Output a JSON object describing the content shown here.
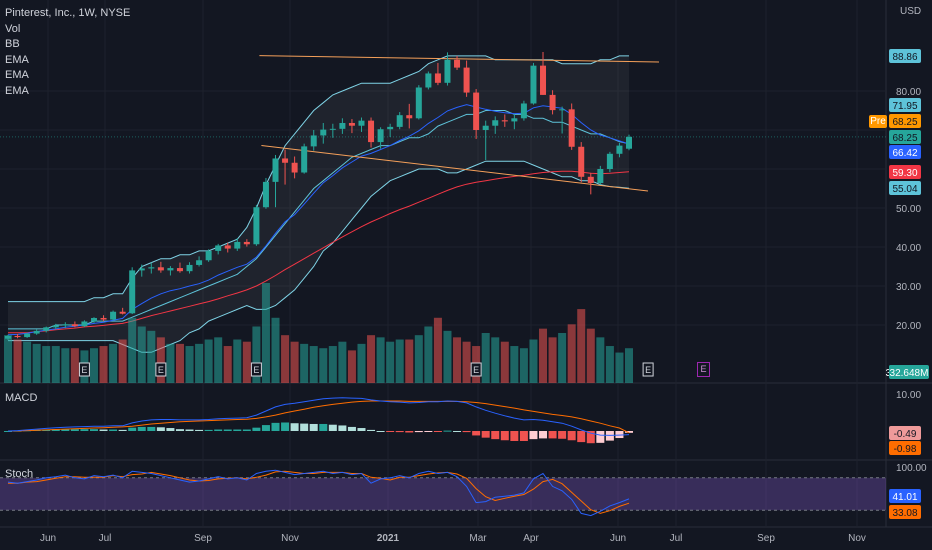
{
  "header": {
    "title": "Pinterest, Inc., 1W, NYSE",
    "indicators": [
      "Vol",
      "BB",
      "EMA",
      "EMA",
      "EMA"
    ],
    "currency": "USD"
  },
  "chart_data": [
    {
      "type": "candlestick",
      "pane": "price",
      "price_axis_ticks": [
        20,
        30,
        40,
        50,
        60,
        70,
        80
      ],
      "price_axis_tick_labels": [
        "20.00",
        "30.00",
        "40.00",
        "50.00",
        "",
        "",
        "80.00"
      ],
      "time_axis_labels": [
        "Jun",
        "Jul",
        "Sep",
        "Nov",
        "2021",
        "Mar",
        "Apr",
        "Jun",
        "Jul",
        "Sep",
        "Nov"
      ],
      "price_tags": [
        {
          "label": "88.86",
          "value": 88.86,
          "color": "#5ec3d9"
        },
        {
          "label": "71.95",
          "value": 71.95,
          "color": "#5ec3d9"
        },
        {
          "label": "68.25",
          "value": 68.25,
          "color": "#ff9800",
          "prefix": "Pre"
        },
        {
          "label": "68.25",
          "value": 68.25,
          "color": "#26a69a"
        },
        {
          "label": "66.42",
          "value": 66.42,
          "color": "#2962ff"
        },
        {
          "label": "59.30",
          "value": 59.3,
          "color": "#f23645"
        },
        {
          "label": "55.04",
          "value": 55.04,
          "color": "#5ec3d9"
        }
      ],
      "candles": [
        [
          16.5,
          17.5,
          16.2,
          17.2
        ],
        [
          17.2,
          17.7,
          16.6,
          16.9
        ],
        [
          16.9,
          18.0,
          16.7,
          17.8
        ],
        [
          17.8,
          18.9,
          17.5,
          18.5
        ],
        [
          18.5,
          19.6,
          18.1,
          19.4
        ],
        [
          19.4,
          20.3,
          18.9,
          19.9
        ],
        [
          19.9,
          20.7,
          19.2,
          20.2
        ],
        [
          20.2,
          20.9,
          19.4,
          19.7
        ],
        [
          19.7,
          21.2,
          19.5,
          20.9
        ],
        [
          20.9,
          22.0,
          20.5,
          21.8
        ],
        [
          21.8,
          22.5,
          21.0,
          21.4
        ],
        [
          21.4,
          23.7,
          21.2,
          23.4
        ],
        [
          23.4,
          24.4,
          22.7,
          22.9
        ],
        [
          23.0,
          34.8,
          22.8,
          34.0
        ],
        [
          34.0,
          35.5,
          32.4,
          34.5
        ],
        [
          34.5,
          36.0,
          33.2,
          34.8
        ],
        [
          34.8,
          36.2,
          33.4,
          34.0
        ],
        [
          34.0,
          35.1,
          32.7,
          34.6
        ],
        [
          34.6,
          36.0,
          33.4,
          33.8
        ],
        [
          33.8,
          36.1,
          33.2,
          35.4
        ],
        [
          35.4,
          37.6,
          35.0,
          36.6
        ],
        [
          36.6,
          39.4,
          36.2,
          39.0
        ],
        [
          39.0,
          40.8,
          38.1,
          40.4
        ],
        [
          40.4,
          41.1,
          38.6,
          39.6
        ],
        [
          39.6,
          42.3,
          39.0,
          41.3
        ],
        [
          41.3,
          42.0,
          40.1,
          40.7
        ],
        [
          40.7,
          50.8,
          40.3,
          50.2
        ],
        [
          50.2,
          57.7,
          49.8,
          56.7
        ],
        [
          56.7,
          63.6,
          50.2,
          62.7
        ],
        [
          62.7,
          65.0,
          56.0,
          61.6
        ],
        [
          61.6,
          63.2,
          57.6,
          59.1
        ],
        [
          59.1,
          66.5,
          58.8,
          65.8
        ],
        [
          65.8,
          70.0,
          64.7,
          68.6
        ],
        [
          68.6,
          71.8,
          66.5,
          70.1
        ],
        [
          70.1,
          71.6,
          68.0,
          70.3
        ],
        [
          70.3,
          73.0,
          69.0,
          71.8
        ],
        [
          71.8,
          72.8,
          69.2,
          71.1
        ],
        [
          71.1,
          73.2,
          69.5,
          72.4
        ],
        [
          72.4,
          73.2,
          65.5,
          66.9
        ],
        [
          66.9,
          70.7,
          65.2,
          70.2
        ],
        [
          70.2,
          71.6,
          68.2,
          70.8
        ],
        [
          70.8,
          74.6,
          70.2,
          73.8
        ],
        [
          73.8,
          76.7,
          70.4,
          73.0
        ],
        [
          73.0,
          81.5,
          72.7,
          80.9
        ],
        [
          80.9,
          85.0,
          80.4,
          84.5
        ],
        [
          84.5,
          87.2,
          81.5,
          82.1
        ],
        [
          82.1,
          89.9,
          81.4,
          88.0
        ],
        [
          88.0,
          89.0,
          85.4,
          86.0
        ],
        [
          86.0,
          87.8,
          78.5,
          79.6
        ],
        [
          79.6,
          80.5,
          67.7,
          70.0
        ],
        [
          70.0,
          72.4,
          62.3,
          71.1
        ],
        [
          71.1,
          73.5,
          69.0,
          72.5
        ],
        [
          72.5,
          74.0,
          70.8,
          72.2
        ],
        [
          72.2,
          74.1,
          70.2,
          73.0
        ],
        [
          73.0,
          77.5,
          72.4,
          76.8
        ],
        [
          76.8,
          87.2,
          76.5,
          86.5
        ],
        [
          86.5,
          90.0,
          79.0,
          79.0
        ],
        [
          79.0,
          80.2,
          74.0,
          75.1
        ],
        [
          75.1,
          76.0,
          69.1,
          75.3
        ],
        [
          75.3,
          76.8,
          64.9,
          65.7
        ],
        [
          65.7,
          66.9,
          56.6,
          58.0
        ],
        [
          58.0,
          59.0,
          53.5,
          56.4
        ],
        [
          56.4,
          60.8,
          56.0,
          60.0
        ],
        [
          60.0,
          64.4,
          59.2,
          63.9
        ],
        [
          63.9,
          66.7,
          63.0,
          66.0
        ],
        [
          65.2,
          68.8,
          64.8,
          68.25
        ]
      ],
      "bollinger": {
        "upper": [
          26,
          26,
          26,
          26,
          26,
          26,
          26,
          26,
          26,
          27,
          27,
          28,
          28,
          32,
          35,
          36,
          37,
          37,
          38,
          38,
          39,
          39,
          40,
          41,
          42,
          45,
          50,
          56,
          61,
          66,
          69,
          72,
          75,
          77,
          79,
          80,
          81,
          82,
          82,
          82,
          82,
          83,
          84,
          85,
          87,
          88,
          89,
          89,
          89,
          89,
          89,
          88,
          88,
          88,
          88,
          88,
          88,
          88,
          87,
          87,
          87,
          87,
          88,
          88,
          89,
          89
        ],
        "middle": [
          19,
          19,
          19,
          19,
          19,
          20,
          20,
          20,
          20,
          21,
          21,
          21,
          21,
          22,
          23,
          24,
          25,
          26,
          27,
          28,
          29,
          30,
          31,
          32,
          33,
          35,
          37,
          40,
          43,
          46,
          49,
          52,
          55,
          57,
          59,
          61,
          63,
          64,
          65,
          66,
          66,
          67,
          68,
          68,
          69,
          71,
          72,
          73,
          74,
          74,
          75,
          75,
          75,
          74,
          74,
          73,
          73,
          72,
          72,
          71,
          70,
          69,
          69,
          68,
          67,
          66.5
        ],
        "lower": [
          16,
          16,
          16,
          16,
          16,
          16,
          16,
          16,
          16,
          16,
          16,
          16,
          15,
          14,
          13,
          13,
          14,
          15,
          16,
          18,
          19,
          21,
          22,
          23,
          24,
          25,
          24,
          24,
          25,
          27,
          29,
          32,
          35,
          39,
          41,
          44,
          47,
          50,
          53,
          55,
          57,
          58,
          59,
          60,
          60,
          60,
          59,
          59,
          60,
          61,
          62,
          62,
          62,
          62,
          62,
          61,
          60,
          59,
          58,
          58,
          57,
          57,
          56,
          55.5,
          55.3,
          55.04
        ]
      },
      "ema_fast": [
        17.5,
        17.6,
        17.9,
        18.3,
        18.7,
        19,
        19.4,
        19.7,
        20,
        20.4,
        20.7,
        21.2,
        21.7,
        24,
        25.5,
        26.9,
        28,
        28.8,
        29.3,
        30,
        30.6,
        31.5,
        32.8,
        33.8,
        34.8,
        35.6,
        37.4,
        40.3,
        43.5,
        46.5,
        48.3,
        51,
        53.8,
        56.5,
        58.3,
        60.3,
        61.8,
        63.3,
        64,
        65,
        66,
        67.3,
        68.4,
        69.8,
        71.7,
        73.2,
        74.9,
        75.8,
        76.5,
        75.9,
        75.3,
        74.8,
        74.4,
        74.2,
        74.3,
        75.7,
        76.2,
        75.9,
        75.6,
        74,
        71.9,
        70,
        68.7,
        68,
        67.2,
        66.42
      ],
      "ema_slow": [
        18,
        18,
        18,
        18.3,
        18.5,
        18.8,
        19,
        19.2,
        19.5,
        19.7,
        19.9,
        20.2,
        20.4,
        21,
        21.7,
        22.4,
        23,
        23.6,
        24.2,
        24.8,
        25.4,
        26,
        26.7,
        27.5,
        28.2,
        29,
        30,
        31.3,
        32.7,
        34.2,
        35.6,
        37,
        38.4,
        39.8,
        41.2,
        42.6,
        43.9,
        45.2,
        46.4,
        47.5,
        48.6,
        49.6,
        50.5,
        51.5,
        52.5,
        53.5,
        54.5,
        55.4,
        56.1,
        56.6,
        57,
        57.4,
        57.8,
        58.1,
        58.4,
        58.8,
        59.1,
        59.3,
        59.4,
        59.4,
        59.2,
        58.9,
        58.8,
        58.9,
        59.1,
        59.3
      ],
      "channel_upper": {
        "from": [
          26,
          88.3
        ],
        "to": [
          69,
          88.4
        ]
      },
      "channel_lower": {
        "from": [
          26,
          65
        ],
        "to": [
          69,
          56
        ]
      },
      "earnings_markers": [
        8,
        16,
        26,
        49,
        67
      ]
    },
    {
      "type": "bar",
      "pane": "volume",
      "label": "32.648M",
      "values": [
        22,
        20,
        19,
        18,
        17,
        17,
        16,
        16,
        15,
        16,
        17,
        18,
        20,
        30,
        26,
        24,
        21,
        18,
        18,
        17,
        18,
        20,
        21,
        17,
        20,
        19,
        26,
        46,
        30,
        22,
        19,
        18,
        17,
        16,
        17,
        19,
        15,
        18,
        22,
        21,
        19,
        20,
        20,
        22,
        26,
        30,
        24,
        21,
        19,
        17,
        23,
        21,
        19,
        17,
        16,
        20,
        25,
        21,
        23,
        27,
        34,
        25,
        21,
        17,
        14,
        16
      ],
      "directions": [
        "u",
        "d",
        "u",
        "u",
        "u",
        "u",
        "u",
        "d",
        "u",
        "u",
        "d",
        "u",
        "d",
        "u",
        "u",
        "u",
        "d",
        "u",
        "d",
        "u",
        "u",
        "u",
        "u",
        "d",
        "u",
        "d",
        "u",
        "u",
        "u",
        "d",
        "d",
        "u",
        "u",
        "u",
        "u",
        "u",
        "d",
        "u",
        "d",
        "u",
        "u",
        "u",
        "d",
        "u",
        "u",
        "d",
        "u",
        "d",
        "d",
        "d",
        "u",
        "u",
        "d",
        "u",
        "u",
        "u",
        "d",
        "d",
        "u",
        "d",
        "d",
        "d",
        "u",
        "u",
        "u",
        "u"
      ]
    },
    {
      "type": "histogram",
      "pane": "macd",
      "label": "MACD",
      "ticks": [
        10
      ],
      "tick_labels": [
        "10.00"
      ],
      "tags": [
        {
          "label": "-0.49",
          "value": -0.49,
          "color": "#ef9a9a"
        },
        {
          "label": "-0.98",
          "value": -0.98,
          "color": "#ff6d00"
        }
      ],
      "macd": [
        0,
        0.1,
        0.3,
        0.5,
        0.7,
        0.9,
        1,
        1.1,
        1.2,
        1.3,
        1.3,
        1.4,
        1.4,
        2.2,
        2.7,
        3,
        3.1,
        3.1,
        3,
        3,
        3,
        3.1,
        3.3,
        3.4,
        3.5,
        3.6,
        4.3,
        5.4,
        6.5,
        7.2,
        7.5,
        7.9,
        8.3,
        8.7,
        8.9,
        9,
        8.9,
        8.8,
        8.4,
        8.1,
        7.9,
        7.8,
        7.6,
        7.7,
        7.9,
        7.9,
        8.1,
        8,
        7.6,
        6.5,
        5.6,
        4.8,
        4.1,
        3.5,
        3,
        3.1,
        2.9,
        2.5,
        2.1,
        1.3,
        0.3,
        -0.6,
        -1.1,
        -1.2,
        -1.1,
        -0.98
      ],
      "signal": [
        0,
        0,
        0.1,
        0.2,
        0.3,
        0.4,
        0.5,
        0.6,
        0.7,
        0.8,
        0.9,
        1,
        1.1,
        1.3,
        1.6,
        1.9,
        2.1,
        2.3,
        2.5,
        2.6,
        2.7,
        2.8,
        2.9,
        3,
        3.1,
        3.2,
        3.4,
        3.8,
        4.3,
        4.9,
        5.4,
        5.9,
        6.4,
        6.8,
        7.2,
        7.5,
        7.8,
        8,
        8.1,
        8.1,
        8.1,
        8.1,
        8,
        8,
        8,
        8,
        8,
        8,
        7.9,
        7.7,
        7.4,
        7,
        6.6,
        6.2,
        5.7,
        5.3,
        4.9,
        4.5,
        4.2,
        3.8,
        3.3,
        2.7,
        2.1,
        1.4,
        0.8,
        -0.49
      ],
      "hist": [
        0,
        0.1,
        0.2,
        0.3,
        0.4,
        0.5,
        0.5,
        0.5,
        0.5,
        0.5,
        0.4,
        0.4,
        0.3,
        0.9,
        1.1,
        1.1,
        1,
        0.8,
        0.5,
        0.4,
        0.3,
        0.3,
        0.4,
        0.4,
        0.4,
        0.4,
        0.9,
        1.6,
        2.2,
        2.3,
        2.1,
        2,
        1.9,
        1.9,
        1.7,
        1.5,
        1.1,
        0.8,
        0.3,
        0,
        -0.2,
        -0.3,
        -0.4,
        -0.3,
        -0.1,
        -0.1,
        0.1,
        0,
        -0.3,
        -1.2,
        -1.8,
        -2.2,
        -2.5,
        -2.7,
        -2.7,
        -2.2,
        -2,
        -2,
        -2.1,
        -2.5,
        -3,
        -3.3,
        -3.2,
        -2.6,
        -1.9,
        -0.49
      ]
    },
    {
      "type": "line",
      "pane": "stoch",
      "label": "Stoch",
      "ticks": [
        100
      ],
      "tick_labels": [
        "100.00"
      ],
      "tags": [
        {
          "label": "41.01",
          "value": 41.01,
          "color": "#2962ff"
        },
        {
          "label": "33.08",
          "value": 33.08,
          "color": "#ff6d00"
        }
      ],
      "band": [
        20,
        80
      ],
      "k": [
        72,
        70,
        73,
        76,
        80,
        82,
        85,
        80,
        78,
        84,
        82,
        85,
        80,
        92,
        90,
        88,
        84,
        80,
        76,
        72,
        74,
        78,
        82,
        78,
        80,
        76,
        88,
        92,
        94,
        90,
        86,
        88,
        90,
        92,
        88,
        90,
        86,
        88,
        70,
        78,
        80,
        84,
        80,
        88,
        92,
        88,
        90,
        82,
        64,
        34,
        36,
        44,
        46,
        48,
        52,
        78,
        88,
        64,
        56,
        40,
        14,
        10,
        18,
        28,
        34,
        41
      ],
      "d": [
        70,
        70,
        72,
        73,
        76,
        79,
        82,
        82,
        81,
        81,
        81,
        84,
        82,
        86,
        87,
        90,
        87,
        84,
        80,
        76,
        74,
        75,
        78,
        79,
        80,
        78,
        81,
        85,
        91,
        92,
        90,
        88,
        88,
        90,
        90,
        90,
        88,
        88,
        81,
        79,
        76,
        81,
        81,
        84,
        87,
        89,
        90,
        87,
        79,
        60,
        45,
        38,
        42,
        46,
        49,
        59,
        73,
        77,
        69,
        53,
        37,
        21,
        14,
        19,
        27,
        33
      ]
    }
  ]
}
